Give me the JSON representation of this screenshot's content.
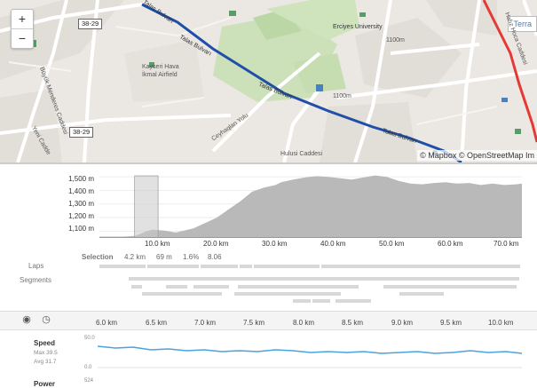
{
  "map": {
    "zoom_in": "+",
    "zoom_out": "−",
    "terrain_label": "Terra",
    "attribution": "© Mapbox © OpenStreetMap Im",
    "shields": [
      "38-29",
      "38-29"
    ],
    "labels": {
      "talas1": "Talas Bulvarı",
      "talas2": "Talas Bulvarı",
      "talas3": "Talas Bulvarı",
      "talas4": "Talas Bulvarı",
      "airfield1": "Kayseri Hava",
      "airfield2": "İkmal Airfield",
      "erciyes": "Erciyes University",
      "ceyhan": "Ceyhaqlan Yolu",
      "buyuk": "Büyük Menderes Caddesi",
      "yeni": "Yeni Cadde",
      "hulusi": "Hulusi Caddesi",
      "hafiz": "Hafız Hoca Caddesi",
      "num1": "1100m",
      "num2": "1100m"
    },
    "colors": {
      "route": "#1f4fa8",
      "red_road": "#e53935"
    }
  },
  "elevation": {
    "y_ticks": [
      "1,500 m",
      "1,400 m",
      "1,300 m",
      "1,200 m",
      "1,100 m"
    ],
    "x_ticks": [
      "10.0 km",
      "20.0 km",
      "30.0 km",
      "40.0 km",
      "50.0 km",
      "60.0 km",
      "70.0 km"
    ],
    "selection_label": "Selection",
    "selection_distance": "4.2 km",
    "selection_gain": "69 m",
    "selection_grade": "1.6%",
    "selection_vam": "8.06",
    "laps_label": "Laps",
    "segments_label": "Segments"
  },
  "chart_data": {
    "type": "area",
    "x": [
      0,
      4,
      6,
      7,
      8,
      9,
      11,
      13,
      14,
      16,
      18,
      20,
      22,
      24,
      26,
      28,
      30,
      31,
      33,
      35,
      37,
      39,
      41,
      43,
      45,
      47,
      49,
      51,
      53,
      55,
      57,
      59,
      61,
      63,
      65,
      67,
      69,
      71,
      72
    ],
    "y": [
      1060,
      1060,
      1065,
      1080,
      1100,
      1110,
      1105,
      1090,
      1100,
      1120,
      1160,
      1200,
      1260,
      1320,
      1390,
      1420,
      1440,
      1460,
      1480,
      1495,
      1505,
      1500,
      1490,
      1480,
      1495,
      1510,
      1500,
      1470,
      1450,
      1445,
      1455,
      1460,
      1450,
      1455,
      1440,
      1450,
      1440,
      1445,
      1450
    ],
    "xlabel": "",
    "ylabel": "",
    "xlim": [
      0,
      72
    ],
    "ylim": [
      1050,
      1560
    ],
    "selection": [
      6,
      10
    ]
  },
  "timeline": {
    "x_ticks": [
      "6.0 km",
      "6.5 km",
      "7.0 km",
      "7.5 km",
      "8.0 km",
      "8.5 km",
      "9.0 km",
      "9.5 km",
      "10.0 km"
    ]
  },
  "stats": {
    "speed_title": "Speed",
    "speed_max": "Max 39.5",
    "speed_avg": "Avg 31.7",
    "speed_y_top": "50.0",
    "speed_y_bottom": "0.0",
    "power_title": "Power",
    "power_y_top": "524"
  }
}
